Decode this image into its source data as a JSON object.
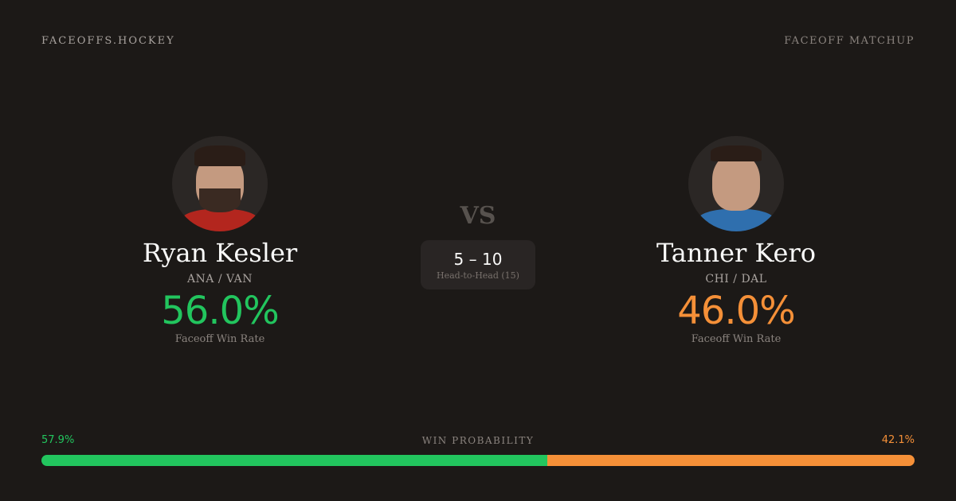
{
  "header": {
    "brand": "FACEOFFS.HOCKEY",
    "tag": "FACEOFF MATCHUP"
  },
  "colors": {
    "left": "#22c55e",
    "right": "#f59038",
    "background": "#1c1917"
  },
  "players": [
    {
      "name": "Ryan Kesler",
      "teams": "ANA / VAN",
      "win_rate": "56.0%",
      "win_rate_label": "Faceoff Win Rate",
      "jersey_color": "#b3261e"
    },
    {
      "name": "Tanner Kero",
      "teams": "CHI / DAL",
      "win_rate": "46.0%",
      "win_rate_label": "Faceoff Win Rate",
      "jersey_color": "#2f6fae"
    }
  ],
  "vs": "VS",
  "head_to_head": {
    "score": "5 – 10",
    "label": "Head-to-Head (15)"
  },
  "win_probability": {
    "title": "WIN PROBABILITY",
    "left": "57.9%",
    "right": "42.1%",
    "left_value": 57.9,
    "right_value": 42.1
  }
}
